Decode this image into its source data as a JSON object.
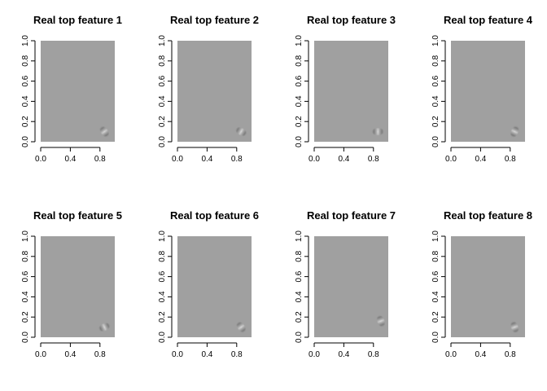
{
  "chart_data": [
    {
      "type": "heatmap",
      "title": "Real top feature 1",
      "xticks": [
        "0.0",
        "0.4",
        "0.8"
      ],
      "yticks": [
        "0.0",
        "0.2",
        "0.4",
        "0.6",
        "0.8",
        "1.0"
      ],
      "xlim": [
        0,
        1
      ],
      "ylim": [
        0,
        1
      ],
      "background": "#a0a0a0",
      "feature": {
        "x": 0.86,
        "y": 0.1,
        "orientation_deg": 55
      }
    },
    {
      "type": "heatmap",
      "title": "Real top feature 2",
      "xticks": [
        "0.0",
        "0.4",
        "0.8"
      ],
      "yticks": [
        "0.0",
        "0.2",
        "0.4",
        "0.6",
        "0.8",
        "1.0"
      ],
      "xlim": [
        0,
        1
      ],
      "ylim": [
        0,
        1
      ],
      "background": "#a0a0a0",
      "feature": {
        "x": 0.86,
        "y": 0.1,
        "orientation_deg": 30
      }
    },
    {
      "type": "heatmap",
      "title": "Real top feature 3",
      "xticks": [
        "0.0",
        "0.4",
        "0.8"
      ],
      "yticks": [
        "0.0",
        "0.2",
        "0.4",
        "0.6",
        "0.8",
        "1.0"
      ],
      "xlim": [
        0,
        1
      ],
      "ylim": [
        0,
        1
      ],
      "background": "#a0a0a0",
      "feature": {
        "x": 0.86,
        "y": 0.1,
        "orientation_deg": 0
      }
    },
    {
      "type": "heatmap",
      "title": "Real top feature 4",
      "xticks": [
        "0.0",
        "0.4",
        "0.8"
      ],
      "yticks": [
        "0.0",
        "0.2",
        "0.4",
        "0.6",
        "0.8",
        "1.0"
      ],
      "xlim": [
        0,
        1
      ],
      "ylim": [
        0,
        1
      ],
      "background": "#a0a0a0",
      "feature": {
        "x": 0.86,
        "y": 0.1,
        "orientation_deg": 115
      }
    },
    {
      "type": "heatmap",
      "title": "Real top feature 5",
      "xticks": [
        "0.0",
        "0.4",
        "0.8"
      ],
      "yticks": [
        "0.0",
        "0.2",
        "0.4",
        "0.6",
        "0.8",
        "1.0"
      ],
      "xlim": [
        0,
        1
      ],
      "ylim": [
        0,
        1
      ],
      "background": "#a0a0a0",
      "feature": {
        "x": 0.86,
        "y": 0.1,
        "orientation_deg": -25
      }
    },
    {
      "type": "heatmap",
      "title": "Real top feature 6",
      "xticks": [
        "0.0",
        "0.4",
        "0.8"
      ],
      "yticks": [
        "0.0",
        "0.2",
        "0.4",
        "0.6",
        "0.8",
        "1.0"
      ],
      "xlim": [
        0,
        1
      ],
      "ylim": [
        0,
        1
      ],
      "background": "#a0a0a0",
      "feature": {
        "x": 0.86,
        "y": 0.1,
        "orientation_deg": 55
      }
    },
    {
      "type": "heatmap",
      "title": "Real top feature 7",
      "xticks": [
        "0.0",
        "0.4",
        "0.8"
      ],
      "yticks": [
        "0.0",
        "0.2",
        "0.4",
        "0.6",
        "0.8",
        "1.0"
      ],
      "xlim": [
        0,
        1
      ],
      "ylim": [
        0,
        1
      ],
      "background": "#a0a0a0",
      "feature": {
        "x": 0.9,
        "y": 0.16,
        "orientation_deg": 70
      }
    },
    {
      "type": "heatmap",
      "title": "Real top feature 8",
      "xticks": [
        "0.0",
        "0.4",
        "0.8"
      ],
      "yticks": [
        "0.0",
        "0.2",
        "0.4",
        "0.6",
        "0.8",
        "1.0"
      ],
      "xlim": [
        0,
        1
      ],
      "ylim": [
        0,
        1
      ],
      "background": "#a0a0a0",
      "feature": {
        "x": 0.86,
        "y": 0.1,
        "orientation_deg": 70
      }
    }
  ]
}
